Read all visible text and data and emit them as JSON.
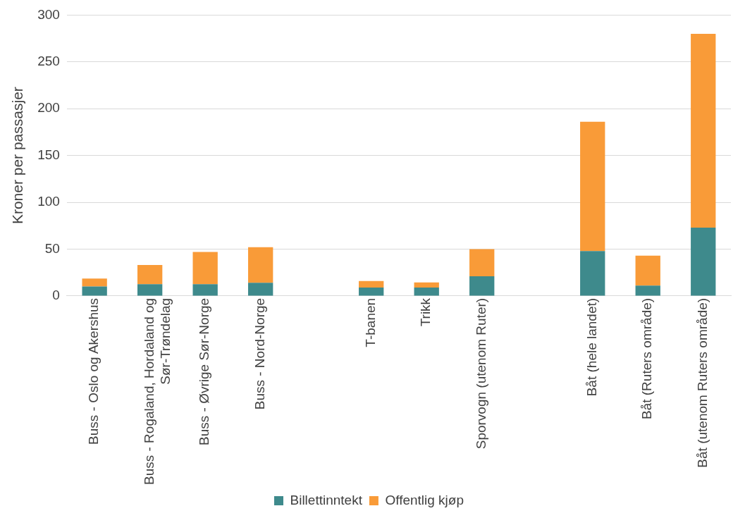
{
  "chart_data": {
    "type": "bar",
    "stacked": true,
    "ylabel": "Kroner per passasjer",
    "categories": [
      "Buss - Oslo og Akershus",
      "Buss - Rogaland, Hordaland og Sør-Trøndelag",
      "Buss - Øvrige Sør-Norge",
      "Buss - Nord-Norge",
      null,
      "T-banen",
      "Trikk",
      "Sporvogn (utenom Ruter)",
      null,
      "Båt (hele landet)",
      "Båt (Ruters område)",
      "Båt (utenom Ruters område)"
    ],
    "series": [
      {
        "name": "Billettinntekt",
        "color": "#3e8a8c",
        "values": [
          10,
          12.5,
          12.5,
          14,
          null,
          9,
          9,
          21,
          null,
          48,
          11,
          73
        ]
      },
      {
        "name": "Offentlig kjøp",
        "color": "#f99b38",
        "values": [
          8.5,
          20.5,
          34.5,
          38,
          null,
          7,
          5.5,
          29,
          null,
          138,
          32,
          207
        ]
      }
    ],
    "ylim": [
      0,
      300
    ],
    "yticks": [
      0,
      50,
      100,
      150,
      200,
      250,
      300
    ],
    "grid": "y",
    "legend": "bottom"
  }
}
